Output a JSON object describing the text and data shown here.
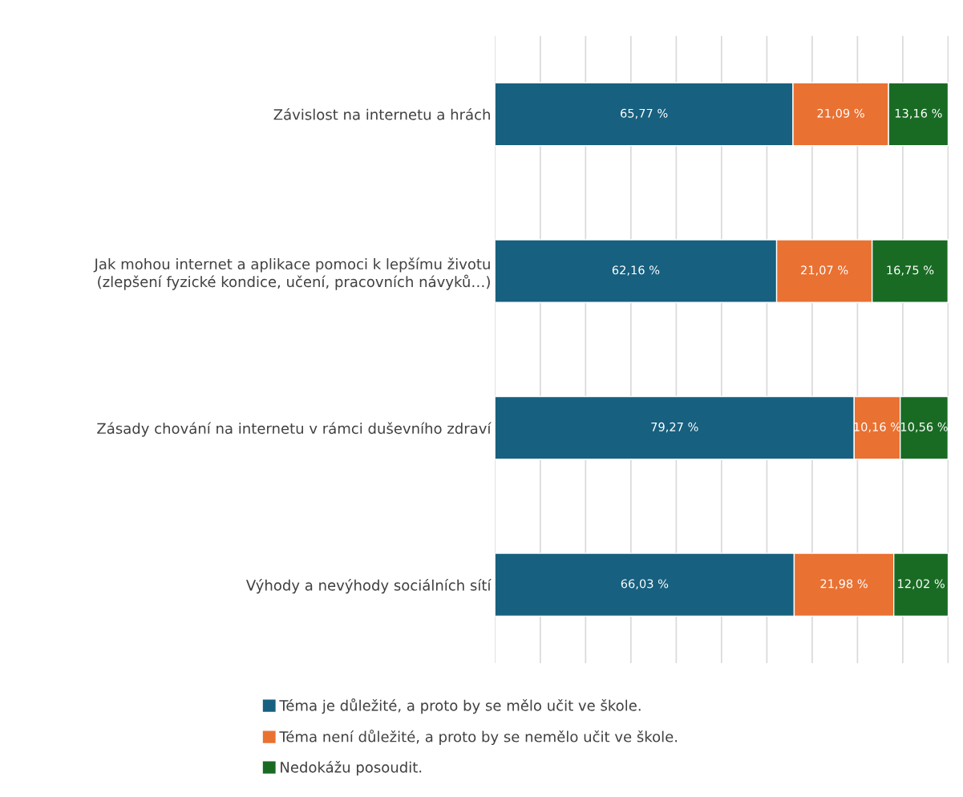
{
  "chart_data": {
    "type": "bar",
    "orientation": "horizontal",
    "stacked": true,
    "categories": [
      "Závislost na internetu a hrách",
      "Jak mohou internet a aplikace pomoci k lepšímu životu\n(zlepšení fyzické kondice, učení, pracovních návyků…)",
      "Zásady chování na internetu v rámci duševního zdraví",
      "Výhody a nevýhody sociálních sítí"
    ],
    "series": [
      {
        "name": "Téma je důležité, a proto by se mělo učit ve škole.",
        "color": "#17607f",
        "values": [
          65.77,
          62.16,
          79.27,
          66.03
        ],
        "value_labels": [
          "65,77 %",
          "62,16 %",
          "79,27 %",
          "66,03 %"
        ]
      },
      {
        "name": "Téma není důležité, a proto by se nemělo učit ve škole.",
        "color": "#e97132",
        "values": [
          21.09,
          21.07,
          10.16,
          21.98
        ],
        "value_labels": [
          "21,09 %",
          "21,07 %",
          "10,16 %",
          "21,98 %"
        ]
      },
      {
        "name": "Nedokážu posoudit.",
        "color": "#196b24",
        "values": [
          13.16,
          16.75,
          10.56,
          12.02
        ],
        "value_labels": [
          "13,16 %",
          "16,75 %",
          "10,56 %",
          "12,02 %"
        ]
      }
    ],
    "xlim": [
      0,
      100.1
    ],
    "xticks": [
      {
        "value": 0,
        "label": null
      },
      {
        "value": 10,
        "label": null
      },
      {
        "value": 20,
        "label": null
      },
      {
        "value": 30,
        "label": null
      },
      {
        "value": 40,
        "label": null
      },
      {
        "value": 50,
        "label": null
      },
      {
        "value": 60,
        "label": null
      },
      {
        "value": 70,
        "label": null
      },
      {
        "value": 80,
        "label": null
      },
      {
        "value": 90,
        "label": null
      },
      {
        "value": 100,
        "label": null
      }
    ],
    "tick_labels": "y",
    "grid": "x",
    "legend": "bottom"
  }
}
